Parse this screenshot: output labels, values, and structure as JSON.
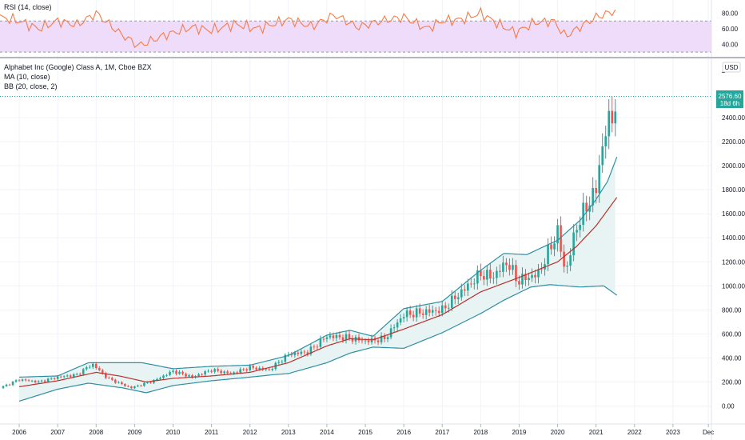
{
  "rsi_pane": {
    "label": "RSI (14, close)",
    "ylim": [
      25,
      95
    ],
    "ticks": [
      40,
      60,
      80
    ],
    "tick_labels": [
      "40.00",
      "60.00",
      "80.00"
    ],
    "band": [
      30,
      70
    ],
    "colors": {
      "line": "#f57c46",
      "band_fill": "#efdcfb",
      "band_border": "#9598a1"
    }
  },
  "price_pane": {
    "title": "Alphabet Inc (Google) Class A, 1M, Cboe BZX",
    "indicator_ma": "MA (10, close)",
    "indicator_bb": "BB (20, close, 2)",
    "currency": "USD",
    "last_price": "2576.60",
    "countdown": "18d 6h",
    "ylim": [
      -150,
      2880
    ],
    "yticks": [
      0,
      200,
      400,
      600,
      800,
      1000,
      1200,
      1400,
      1600,
      1800,
      2000,
      2200,
      2400
    ],
    "ytick_labels": [
      "0.00",
      "200.00",
      "400.00",
      "600.00",
      "800.00",
      "1000.00",
      "1200.00",
      "1400.00",
      "1600.00",
      "1800.00",
      "2000.00",
      "2200.00",
      "2400.00"
    ],
    "top_tick_label": "2",
    "colors": {
      "up": "#26a69a",
      "down": "#ef5350",
      "ma": "#b7312c",
      "bb": "#2e8fa0",
      "bb_fill": "#e8f4f4",
      "price_tag": "#26a69a"
    }
  },
  "x_axis": {
    "labels": [
      "2006",
      "2007",
      "2008",
      "2009",
      "2010",
      "2011",
      "2012",
      "2013",
      "2014",
      "2015",
      "2016",
      "2017",
      "2018",
      "2019",
      "2020",
      "2021",
      "2022",
      "2023",
      "Dec"
    ]
  },
  "chart_data": {
    "type": "line",
    "title": "Alphabet Inc (Google) Class A, 1M, Cboe BZX",
    "x_range": [
      2005.5,
      2024.0
    ],
    "y_range": [
      -150,
      2880
    ],
    "series": [
      {
        "name": "Alphabet Inc (Google) Class A",
        "x": [
          2005.5,
          2006,
          2006.5,
          2007,
          2007.5,
          2007.9,
          2008.3,
          2008.9,
          2009.5,
          2010,
          2010.5,
          2011,
          2011.5,
          2012,
          2012.5,
          2013,
          2013.5,
          2014,
          2014.5,
          2015,
          2015.5,
          2016,
          2016.5,
          2017,
          2017.5,
          2018,
          2018.3,
          2018.7,
          2018.95,
          2019.5,
          2020,
          2020.2,
          2020.5,
          2020.9,
          2021,
          2021.2,
          2021.4,
          2021.55
        ],
        "values": [
          150,
          220,
          200,
          240,
          260,
          350,
          230,
          150,
          210,
          290,
          240,
          300,
          270,
          320,
          300,
          430,
          450,
          580,
          570,
          540,
          560,
          760,
          780,
          800,
          950,
          1100,
          1070,
          1200,
          1040,
          1100,
          1450,
          1100,
          1500,
          1750,
          1800,
          2250,
          2400,
          2576
        ]
      },
      {
        "name": "MA (10, close)",
        "x": [
          2006,
          2007,
          2008,
          2008.6,
          2009.3,
          2010,
          2011,
          2012,
          2013,
          2014,
          2014.6,
          2015.2,
          2016,
          2017,
          2018,
          2019,
          2020,
          2020.5,
          2021,
          2021.55
        ],
        "values": [
          160,
          210,
          280,
          250,
          200,
          230,
          250,
          280,
          360,
          500,
          560,
          550,
          640,
          760,
          950,
          1070,
          1200,
          1330,
          1500,
          1740
        ]
      },
      {
        "name": "BB (20, close, 2) upper",
        "x": [
          2006,
          2007,
          2007.8,
          2008.5,
          2009.2,
          2010,
          2011,
          2012,
          2013,
          2014,
          2014.6,
          2015.2,
          2016,
          2017,
          2018,
          2018.6,
          2019.2,
          2020,
          2020.6,
          2021,
          2021.3,
          2021.55
        ],
        "values": [
          240,
          250,
          360,
          360,
          360,
          310,
          330,
          340,
          420,
          590,
          630,
          580,
          810,
          870,
          1130,
          1270,
          1260,
          1380,
          1550,
          1720,
          1870,
          2080
        ]
      },
      {
        "name": "BB (20, close, 2) lower",
        "x": [
          2006,
          2007,
          2007.8,
          2008.7,
          2009.3,
          2010,
          2011,
          2012,
          2012.6,
          2013,
          2014,
          2014.6,
          2015.2,
          2016,
          2017,
          2018,
          2018.6,
          2019.3,
          2019.8,
          2020.6,
          2021.2,
          2021.55
        ],
        "values": [
          40,
          140,
          190,
          150,
          110,
          170,
          210,
          240,
          260,
          270,
          360,
          440,
          490,
          480,
          610,
          770,
          880,
          990,
          1010,
          990,
          1000,
          920
        ]
      },
      {
        "name": "RSI (14, close)",
        "x": [
          2005.5,
          2006,
          2006.5,
          2007,
          2007.5,
          2008.0,
          2008.6,
          2009.1,
          2009.8,
          2010.5,
          2011,
          2011.6,
          2012.2,
          2013,
          2013.6,
          2014.2,
          2014.8,
          2015.4,
          2016,
          2016.6,
          2017,
          2017.5,
          2018,
          2018.5,
          2018.9,
          2019.4,
          2019.9,
          2020.2,
          2020.6,
          2021,
          2021.55
        ],
        "values": [
          75,
          70,
          60,
          70,
          65,
          80,
          55,
          38,
          52,
          62,
          58,
          66,
          60,
          72,
          63,
          78,
          62,
          70,
          75,
          60,
          70,
          72,
          80,
          65,
          55,
          68,
          70,
          50,
          63,
          75,
          84
        ]
      }
    ],
    "xlabel": "",
    "ylabel": "",
    "grid": true
  }
}
